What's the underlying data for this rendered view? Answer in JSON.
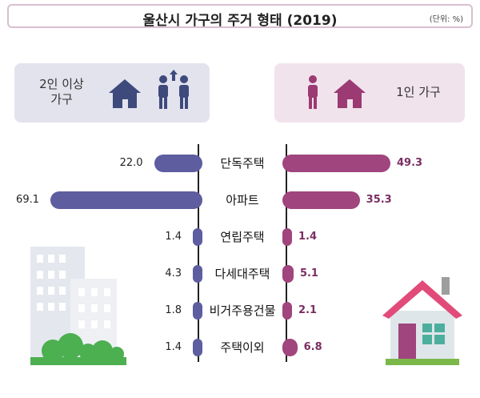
{
  "header": {
    "title": "울산시 가구의 주거 형태 (2019)",
    "unit": "(단위: %)"
  },
  "groups": {
    "left_label_line1": "2인 이상",
    "left_label_line2": "가구",
    "right_label": "1인 가구"
  },
  "colors": {
    "left_bar": "#5d5da0",
    "right_bar": "#a0457d",
    "left_icon": "#3e4a7c",
    "right_icon": "#9b3a73"
  },
  "chart_data": {
    "type": "bar",
    "title": "울산시 가구의 주거 형태 (2019)",
    "unit": "(단위: %)",
    "categories": [
      "단독주택",
      "아파트",
      "연립주택",
      "다세대주택",
      "비거주용건물",
      "주택이외"
    ],
    "series": [
      {
        "name": "2인 이상 가구",
        "values": [
          22.0,
          69.1,
          1.4,
          4.3,
          1.8,
          1.4
        ]
      },
      {
        "name": "1인 가구",
        "values": [
          49.3,
          35.3,
          1.4,
          5.1,
          2.1,
          6.8
        ]
      }
    ],
    "value_labels_left": [
      "22.0",
      "69.1",
      "1.4",
      "4.3",
      "1.8",
      "1.4"
    ],
    "value_labels_right": [
      "49.3",
      "35.3",
      "1.4",
      "5.1",
      "2.1",
      "6.8"
    ]
  }
}
